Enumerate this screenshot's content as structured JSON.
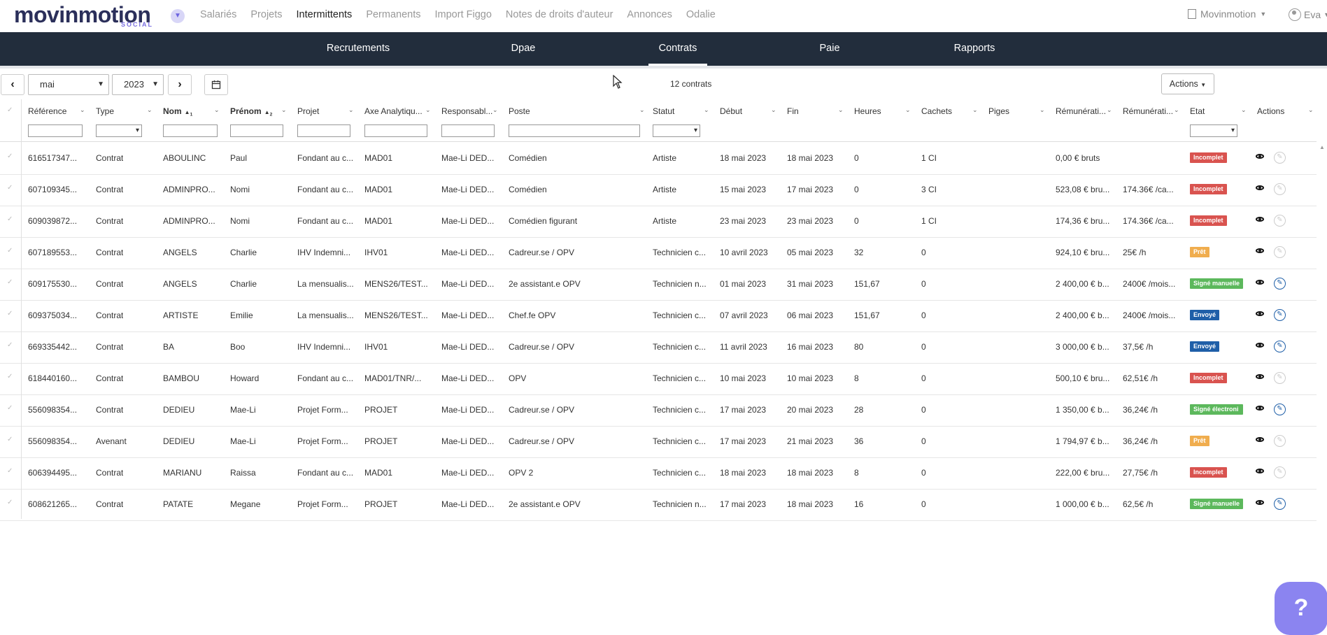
{
  "brand": {
    "logo_main": "movinmotion",
    "logo_sub": "SOCIAL"
  },
  "topnav": {
    "items": [
      {
        "label": "Salariés",
        "active": false
      },
      {
        "label": "Projets",
        "active": false
      },
      {
        "label": "Intermittents",
        "active": true
      },
      {
        "label": "Permanents",
        "active": false
      },
      {
        "label": "Import Figgo",
        "active": false
      },
      {
        "label": "Notes de droits d'auteur",
        "active": false
      },
      {
        "label": "Annonces",
        "active": false
      },
      {
        "label": "Odalie",
        "active": false
      }
    ],
    "org": "Movinmotion",
    "user": "Eva"
  },
  "subnav": {
    "items": [
      {
        "label": "Recrutements",
        "active": false
      },
      {
        "label": "Dpae",
        "active": false
      },
      {
        "label": "Contrats",
        "active": true
      },
      {
        "label": "Paie",
        "active": false
      },
      {
        "label": "Rapports",
        "active": false
      }
    ]
  },
  "toolbar": {
    "month": "mai",
    "year": "2023",
    "count": "12 contrats",
    "actions_label": "Actions"
  },
  "columns": [
    {
      "label": "Référence",
      "bold": false,
      "sort": ""
    },
    {
      "label": "Type",
      "bold": false,
      "sort": ""
    },
    {
      "label": "Nom",
      "bold": true,
      "sort": "1"
    },
    {
      "label": "Prénom",
      "bold": true,
      "sort": "2"
    },
    {
      "label": "Projet",
      "bold": false,
      "sort": ""
    },
    {
      "label": "Axe Analytiqu...",
      "bold": false,
      "sort": ""
    },
    {
      "label": "Responsabl...",
      "bold": false,
      "sort": ""
    },
    {
      "label": "Poste",
      "bold": false,
      "sort": ""
    },
    {
      "label": "Statut",
      "bold": false,
      "sort": ""
    },
    {
      "label": "Début",
      "bold": false,
      "sort": ""
    },
    {
      "label": "Fin",
      "bold": false,
      "sort": ""
    },
    {
      "label": "Heures",
      "bold": false,
      "sort": ""
    },
    {
      "label": "Cachets",
      "bold": false,
      "sort": ""
    },
    {
      "label": "Piges",
      "bold": false,
      "sort": ""
    },
    {
      "label": "Rémunérati...",
      "bold": false,
      "sort": ""
    },
    {
      "label": "Rémunérati...",
      "bold": false,
      "sort": ""
    },
    {
      "label": "Etat",
      "bold": false,
      "sort": ""
    },
    {
      "label": "Actions",
      "bold": false,
      "sort": ""
    }
  ],
  "rows": [
    [
      "616517347...",
      "Contrat",
      "ABOULINC",
      "Paul",
      "Fondant au c...",
      "MAD01",
      "Mae-Li DED...",
      "Comédien",
      "Artiste",
      "18 mai 2023",
      "18 mai 2023",
      "0",
      "1 CI",
      "",
      "0,00 € bruts",
      "",
      "Incomplet",
      "disabled"
    ],
    [
      "607109345...",
      "Contrat",
      "ADMINPRO...",
      "Nomi",
      "Fondant au c...",
      "MAD01",
      "Mae-Li DED...",
      "Comédien",
      "Artiste",
      "15 mai 2023",
      "17 mai 2023",
      "0",
      "3 CI",
      "",
      "523,08 € bru...",
      "174.36€ /ca...",
      "Incomplet",
      "disabled"
    ],
    [
      "609039872...",
      "Contrat",
      "ADMINPRO...",
      "Nomi",
      "Fondant au c...",
      "MAD01",
      "Mae-Li DED...",
      "Comédien figurant",
      "Artiste",
      "23 mai 2023",
      "23 mai 2023",
      "0",
      "1 CI",
      "",
      "174,36 € bru...",
      "174.36€ /ca...",
      "Incomplet",
      "disabled"
    ],
    [
      "607189553...",
      "Contrat",
      "ANGELS",
      "Charlie",
      "IHV Indemni...",
      "IHV01",
      "Mae-Li DED...",
      "Cadreur.se / OPV",
      "Technicien c...",
      "10 avril 2023",
      "05 mai 2023",
      "32",
      "0",
      "",
      "924,10 € bru...",
      "25€ /h",
      "Prêt",
      "disabled"
    ],
    [
      "609175530...",
      "Contrat",
      "ANGELS",
      "Charlie",
      "La mensualis...",
      "MENS26/TEST...",
      "Mae-Li DED...",
      "2e assistant.e OPV",
      "Technicien n...",
      "01 mai 2023",
      "31 mai 2023",
      "151,67",
      "0",
      "",
      "2 400,00 € b...",
      "2400€ /mois...",
      "Signé manuelle",
      "enabled"
    ],
    [
      "609375034...",
      "Contrat",
      "ARTISTE",
      "Emilie",
      "La mensualis...",
      "MENS26/TEST...",
      "Mae-Li DED...",
      "Chef.fe OPV",
      "Technicien c...",
      "07 avril 2023",
      "06 mai 2023",
      "151,67",
      "0",
      "",
      "2 400,00 € b...",
      "2400€ /mois...",
      "Envoyé",
      "enabled"
    ],
    [
      "669335442...",
      "Contrat",
      "BA",
      "Boo",
      "IHV Indemni...",
      "IHV01",
      "Mae-Li DED...",
      "Cadreur.se / OPV",
      "Technicien c...",
      "11 avril 2023",
      "16 mai 2023",
      "80",
      "0",
      "",
      "3 000,00 € b...",
      "37,5€ /h",
      "Envoyé",
      "enabled"
    ],
    [
      "618440160...",
      "Contrat",
      "BAMBOU",
      "Howard",
      "Fondant au c...",
      "MAD01/TNR/...",
      "Mae-Li DED...",
      "OPV",
      "Technicien c...",
      "10 mai 2023",
      "10 mai 2023",
      "8",
      "0",
      "",
      "500,10 € bru...",
      "62,51€ /h",
      "Incomplet",
      "disabled"
    ],
    [
      "556098354...",
      "Contrat",
      "DEDIEU",
      "Mae-Li",
      "Projet Form...",
      "PROJET",
      "Mae-Li DED...",
      "Cadreur.se / OPV",
      "Technicien c...",
      "17 mai 2023",
      "20 mai 2023",
      "28",
      "0",
      "",
      "1 350,00 € b...",
      "36,24€ /h",
      "Signé électroni",
      "enabled"
    ],
    [
      "556098354...",
      "Avenant",
      "DEDIEU",
      "Mae-Li",
      "Projet Form...",
      "PROJET",
      "Mae-Li DED...",
      "Cadreur.se / OPV",
      "Technicien c...",
      "17 mai 2023",
      "21 mai 2023",
      "36",
      "0",
      "",
      "1 794,97 € b...",
      "36,24€ /h",
      "Prêt",
      "disabled"
    ],
    [
      "606394495...",
      "Contrat",
      "MARIANU",
      "Raissa",
      "Fondant au c...",
      "MAD01",
      "Mae-Li DED...",
      "OPV 2",
      "Technicien c...",
      "18 mai 2023",
      "18 mai 2023",
      "8",
      "0",
      "",
      "222,00 € bru...",
      "27,75€ /h",
      "Incomplet",
      "disabled"
    ],
    [
      "608621265...",
      "Contrat",
      "PATATE",
      "Megane",
      "Projet Form...",
      "PROJET",
      "Mae-Li DED...",
      "2e assistant.e OPV",
      "Technicien n...",
      "17 mai 2023",
      "18 mai 2023",
      "16",
      "0",
      "",
      "1 000,00 € b...",
      "62,5€ /h",
      "Signé manuelle",
      "enabled"
    ]
  ],
  "status_colors": {
    "Incomplet": "#d9534f",
    "Prêt": "#f0ad4e",
    "Signé manuelle": "#5cb85c",
    "Signé électroni": "#5cb85c",
    "Envoyé": "#1f5fa8"
  },
  "help_label": "?"
}
